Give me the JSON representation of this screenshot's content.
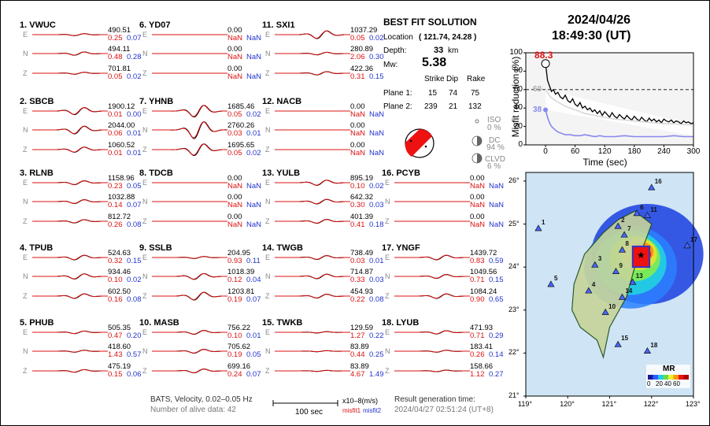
{
  "stations": [
    {
      "name": "1.  VWUC",
      "c": [
        {
          "amp": "490.51",
          "m1": "0.25",
          "m2": "0.07"
        },
        {
          "amp": "494.11",
          "m1": "0.48",
          "m2": "0.28"
        },
        {
          "amp": "701.81",
          "m1": "0.05",
          "m2": "0.02"
        }
      ]
    },
    {
      "name": "2.  SBCB",
      "c": [
        {
          "amp": "1900.12",
          "m1": "0.01",
          "m2": "0.00"
        },
        {
          "amp": "2044.00",
          "m1": "0.06",
          "m2": "0.01"
        },
        {
          "amp": "1060.52",
          "m1": "0.01",
          "m2": "0.01"
        }
      ]
    },
    {
      "name": "3.  RLNB",
      "c": [
        {
          "amp": "1158.96",
          "m1": "0.23",
          "m2": "0.05"
        },
        {
          "amp": "1032.88",
          "m1": "0.14",
          "m2": "0.07"
        },
        {
          "amp": "812.72",
          "m1": "0.26",
          "m2": "0.08"
        }
      ]
    },
    {
      "name": "4.  TPUB",
      "c": [
        {
          "amp": "524.63",
          "m1": "0.32",
          "m2": "0.15"
        },
        {
          "amp": "934.46",
          "m1": "0.10",
          "m2": "0.02"
        },
        {
          "amp": "602.50",
          "m1": "0.16",
          "m2": "0.08"
        }
      ]
    },
    {
      "name": "5.  PHUB",
      "c": [
        {
          "amp": "505.35",
          "m1": "0.47",
          "m2": "0.20"
        },
        {
          "amp": "418.60",
          "m1": "1.43",
          "m2": "0.57"
        },
        {
          "amp": "475.19",
          "m1": "0.15",
          "m2": "0.06"
        }
      ]
    },
    {
      "name": "6.  YD07",
      "c": [
        {
          "amp": "0.00",
          "m1": "NaN",
          "m2": "NaN"
        },
        {
          "amp": "0.00",
          "m1": "NaN",
          "m2": "NaN"
        },
        {
          "amp": "0.00",
          "m1": "NaN",
          "m2": "NaN"
        }
      ]
    },
    {
      "name": "7.  YHNB",
      "c": [
        {
          "amp": "1685.46",
          "m1": "0.05",
          "m2": "0.02"
        },
        {
          "amp": "2760.26",
          "m1": "0.03",
          "m2": "0.01"
        },
        {
          "amp": "1695.65",
          "m1": "0.05",
          "m2": "0.02"
        }
      ]
    },
    {
      "name": "8.  TDCB",
      "c": [
        {
          "amp": "0.00",
          "m1": "NaN",
          "m2": "NaN"
        },
        {
          "amp": "0.00",
          "m1": "NaN",
          "m2": "NaN"
        },
        {
          "amp": "0.00",
          "m1": "NaN",
          "m2": "NaN"
        }
      ]
    },
    {
      "name": "9.  SSLB",
      "c": [
        {
          "amp": "204.95",
          "m1": "0.93",
          "m2": "0.11"
        },
        {
          "amp": "1018.39",
          "m1": "0.12",
          "m2": "0.04"
        },
        {
          "amp": "1203.81",
          "m1": "0.19",
          "m2": "0.07"
        }
      ]
    },
    {
      "name": "10. MASB",
      "c": [
        {
          "amp": "756.22",
          "m1": "0.10",
          "m2": "0.01"
        },
        {
          "amp": "705.62",
          "m1": "0.19",
          "m2": "0.05"
        },
        {
          "amp": "699.16",
          "m1": "0.24",
          "m2": "0.07"
        }
      ]
    },
    {
      "name": "11. SXI1",
      "c": [
        {
          "amp": "1037.29",
          "m1": "0.05",
          "m2": "0.02"
        },
        {
          "amp": "280.89",
          "m1": "2.06",
          "m2": "0.30"
        },
        {
          "amp": "422.36",
          "m1": "0.31",
          "m2": "0.15"
        }
      ]
    },
    {
      "name": "12. NACB",
      "c": [
        {
          "amp": "0.00",
          "m1": "NaN",
          "m2": "NaN"
        },
        {
          "amp": "0.00",
          "m1": "NaN",
          "m2": "NaN"
        },
        {
          "amp": "0.00",
          "m1": "NaN",
          "m2": "NaN"
        }
      ]
    },
    {
      "name": "13. YULB",
      "c": [
        {
          "amp": "895.19",
          "m1": "0.10",
          "m2": "0.02"
        },
        {
          "amp": "642.32",
          "m1": "0.30",
          "m2": "0.03"
        },
        {
          "amp": "401.39",
          "m1": "0.41",
          "m2": "0.18"
        }
      ]
    },
    {
      "name": "14. TWGB",
      "c": [
        {
          "amp": "738.49",
          "m1": "0.03",
          "m2": "0.01"
        },
        {
          "amp": "714.87",
          "m1": "0.33",
          "m2": "0.03"
        },
        {
          "amp": "454.93",
          "m1": "0.22",
          "m2": "0.08"
        }
      ]
    },
    {
      "name": "15. TWKB",
      "c": [
        {
          "amp": "129.59",
          "m1": "1.27",
          "m2": "0.22"
        },
        {
          "amp": "83.89",
          "m1": "0.44",
          "m2": "0.25"
        },
        {
          "amp": "83.89",
          "m1": "4.67",
          "m2": "1.49"
        }
      ]
    },
    {
      "name": "16. PCYB",
      "c": [
        {
          "amp": "0.00",
          "m1": "NaN",
          "m2": "NaN"
        },
        {
          "amp": "0.00",
          "m1": "NaN",
          "m2": "NaN"
        },
        {
          "amp": "0.00",
          "m1": "NaN",
          "m2": "NaN"
        }
      ]
    },
    {
      "name": "17. YNGF",
      "c": [
        {
          "amp": "1439.72",
          "m1": "0.83",
          "m2": "0.59"
        },
        {
          "amp": "1049.56",
          "m1": "0.71",
          "m2": "0.15"
        },
        {
          "amp": "1084.24",
          "m1": "0.90",
          "m2": "0.65"
        }
      ]
    },
    {
      "name": "18. LYUB",
      "c": [
        {
          "amp": "471.93",
          "m1": "0.71",
          "m2": "0.29"
        },
        {
          "amp": "183.41",
          "m1": "0.26",
          "m2": "0.14"
        },
        {
          "amp": "158.66",
          "m1": "1.12",
          "m2": "0.27"
        }
      ]
    }
  ],
  "components": [
    "E",
    "N",
    "Z"
  ],
  "best_fit": {
    "title": "BEST FIT SOLUTION",
    "location_label": "Location",
    "location_value": "( 121.74,  24.28 )",
    "depth_label": "Depth:",
    "depth_value": "33",
    "depth_unit": "km",
    "mw_label": "Mw:",
    "mw_value": "5.38",
    "headers": [
      "Strike",
      "Dip",
      "Rake"
    ],
    "plane1_label": "Plane 1:",
    "plane1": [
      "15",
      "74",
      "75"
    ],
    "plane2_label": "Plane 2:",
    "plane2": [
      "239",
      "21",
      "132"
    ],
    "iso_label": "ISO",
    "iso_value": "0  %",
    "dc_label": "DC",
    "dc_value": "94 %",
    "clvd_label": "CLVD",
    "clvd_value": "6  %"
  },
  "datetime": {
    "date": "2024/04/26",
    "time": "18:49:30  (UT)"
  },
  "footer": {
    "info1": "BATS, Velocity, 0.02–0.05 Hz",
    "info2": "Number of alive data: 42",
    "scale_label": "100 sec",
    "unit": "x10–8(m/s)",
    "misfit1": "misfit1",
    "misfit2": "misfit2",
    "result_label": "Result generation time:",
    "result_time": "2024/04/27 02:51:24  (UT+8)"
  },
  "chart_data": {
    "type": "line",
    "xlabel": "Time (sec)",
    "ylabel": "Misfit reduction (%)",
    "xlim": [
      -40,
      300
    ],
    "ylim": [
      0,
      100
    ],
    "xticks": [
      0,
      60,
      120,
      180,
      240,
      300
    ],
    "yticks": [
      0,
      20,
      40,
      60,
      80,
      100
    ],
    "annotations": {
      "max_value": "88.3",
      "dashed_value": "60",
      "blue_start": "38"
    },
    "series": [
      {
        "color": "#000000",
        "x": [
          0,
          4,
          8,
          12,
          16,
          20,
          25,
          30,
          35,
          40,
          45,
          50,
          55,
          60,
          65,
          70,
          75,
          80,
          85,
          90,
          95,
          100,
          105,
          110,
          115,
          120,
          125,
          130,
          135,
          140,
          145,
          150,
          155,
          160,
          165,
          170,
          175,
          180,
          185,
          190,
          195,
          200,
          205,
          210,
          215,
          220,
          225,
          230,
          235,
          240,
          245,
          250,
          255,
          260,
          265,
          270,
          275,
          280,
          285,
          290,
          295,
          300
        ],
        "y": [
          88.3,
          70,
          64,
          58,
          60,
          55,
          57,
          52,
          50,
          54,
          48,
          46,
          50,
          44,
          42,
          46,
          40,
          42,
          38,
          40,
          36,
          38,
          34,
          37,
          32,
          36,
          33,
          30,
          35,
          31,
          29,
          33,
          30,
          28,
          32,
          29,
          27,
          31,
          28,
          26,
          30,
          27,
          25,
          29,
          26,
          28,
          25,
          27,
          24,
          28,
          26,
          25,
          27,
          24,
          26,
          25,
          23,
          26,
          24,
          25,
          23,
          24
        ]
      },
      {
        "color": "#d8d8d8",
        "x": [
          0,
          5,
          10,
          20,
          30,
          40,
          50,
          60,
          80,
          100,
          120,
          140,
          160,
          180,
          200,
          220,
          240,
          260,
          280,
          300
        ],
        "y": [
          60,
          56,
          52,
          48,
          45,
          42,
          40,
          38,
          34,
          32,
          30,
          28,
          27,
          26,
          25,
          24,
          23,
          23,
          22,
          22
        ]
      },
      {
        "color": "#8888ee",
        "x": [
          0,
          4,
          8,
          12,
          16,
          20,
          25,
          30,
          35,
          40,
          50,
          60,
          70,
          80,
          90,
          100,
          110,
          120,
          140,
          160,
          180,
          200,
          220,
          240,
          260,
          280,
          300
        ],
        "y": [
          38,
          30,
          24,
          20,
          18,
          16,
          14,
          13,
          12,
          11,
          11,
          10,
          10,
          11,
          10,
          9,
          10,
          9,
          9,
          10,
          9,
          9,
          9,
          9,
          10,
          9,
          9
        ]
      }
    ]
  },
  "map": {
    "lat_ticks": [
      "26°",
      "25°",
      "24°",
      "23°",
      "22°",
      "21°"
    ],
    "lon_ticks": [
      "119°",
      "120°",
      "121°",
      "122°",
      "123°"
    ],
    "legend_title": "MR",
    "legend_ticks": [
      "0",
      "20",
      "40",
      "60"
    ],
    "station_labels": [
      "1",
      "2",
      "3",
      "4",
      "5",
      "6",
      "7",
      "8",
      "9",
      "10",
      "11",
      "13",
      "14",
      "15",
      "16",
      "17",
      "18"
    ]
  },
  "colors": {
    "observed": "#000000",
    "synthetic": "#dd1111",
    "misfit1": "#dd1111",
    "misfit2": "#2233cc"
  }
}
